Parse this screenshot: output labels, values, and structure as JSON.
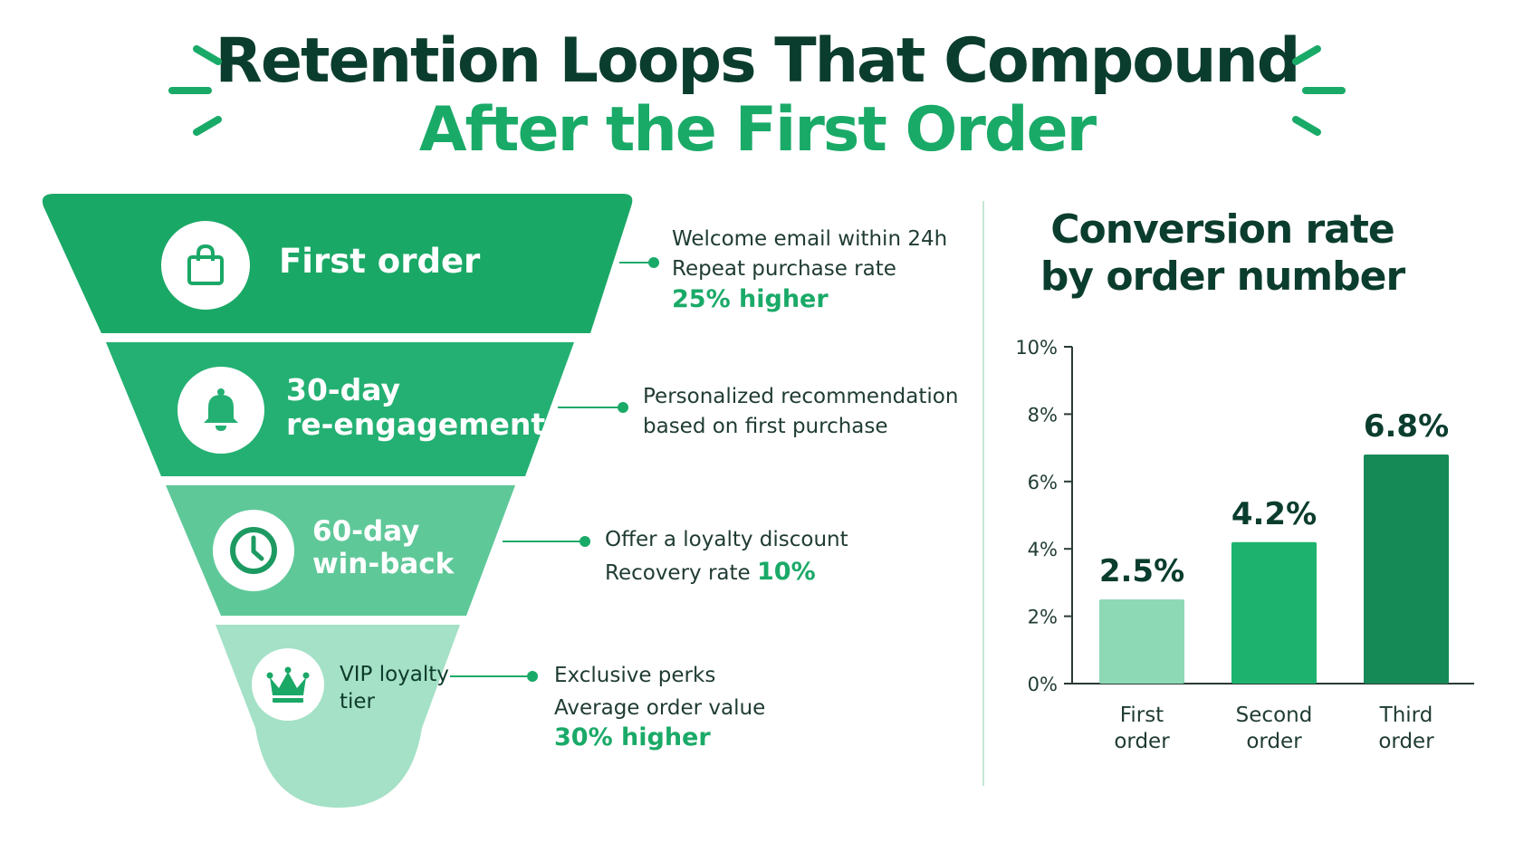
{
  "title": {
    "line1": "Retention Loops That Compound",
    "line2": "After the First Order"
  },
  "colors": {
    "dark_green": "#0b3d2e",
    "accent": "#1aaa68",
    "stage1": "#1aa866",
    "stage2": "#24b073",
    "stage3": "#5fc899",
    "stage4": "#a4e1c6"
  },
  "funnel": {
    "stages": [
      {
        "label_lines": [
          "First order"
        ],
        "icon": "shopping-bag-icon",
        "note_lines": [
          "Welcome email within 24h",
          "Repeat purchase rate"
        ],
        "highlight": "25% higher"
      },
      {
        "label_lines": [
          "30-day",
          "re-engagement"
        ],
        "icon": "bell-icon",
        "note_lines": [
          "Personalized recommendation",
          "based on first purchase"
        ],
        "highlight": ""
      },
      {
        "label_lines": [
          "60-day",
          "win-back"
        ],
        "icon": "clock-icon",
        "note_lines": [
          "Offer a loyalty discount"
        ],
        "note_inline_prefix": "Recovery rate ",
        "highlight": "10%"
      },
      {
        "label_lines": [
          "VIP loyalty",
          "tier"
        ],
        "icon": "crown-icon",
        "note_lines": [
          "Exclusive perks",
          "Average order value"
        ],
        "highlight": "30% higher"
      }
    ]
  },
  "chart_data": {
    "type": "bar",
    "title": "Conversion rate by order number",
    "title_lines": [
      "Conversion rate",
      "by order number"
    ],
    "categories": [
      "First order",
      "Second order",
      "Third order"
    ],
    "category_lines": [
      [
        "First",
        "order"
      ],
      [
        "Second",
        "order"
      ],
      [
        "Third",
        "order"
      ]
    ],
    "values": [
      2.5,
      4.2,
      6.8
    ],
    "value_labels": [
      "2.5%",
      "4.2%",
      "6.8%"
    ],
    "bar_colors": [
      "#8dd9b6",
      "#1db36e",
      "#168a56"
    ],
    "ylim": [
      0,
      10
    ],
    "yticks": [
      "0%",
      "2%",
      "4%",
      "6%",
      "8%",
      "10%"
    ],
    "ytick_values": [
      0,
      2,
      4,
      6,
      8,
      10
    ],
    "grid": false,
    "xlabel": "",
    "ylabel": ""
  }
}
